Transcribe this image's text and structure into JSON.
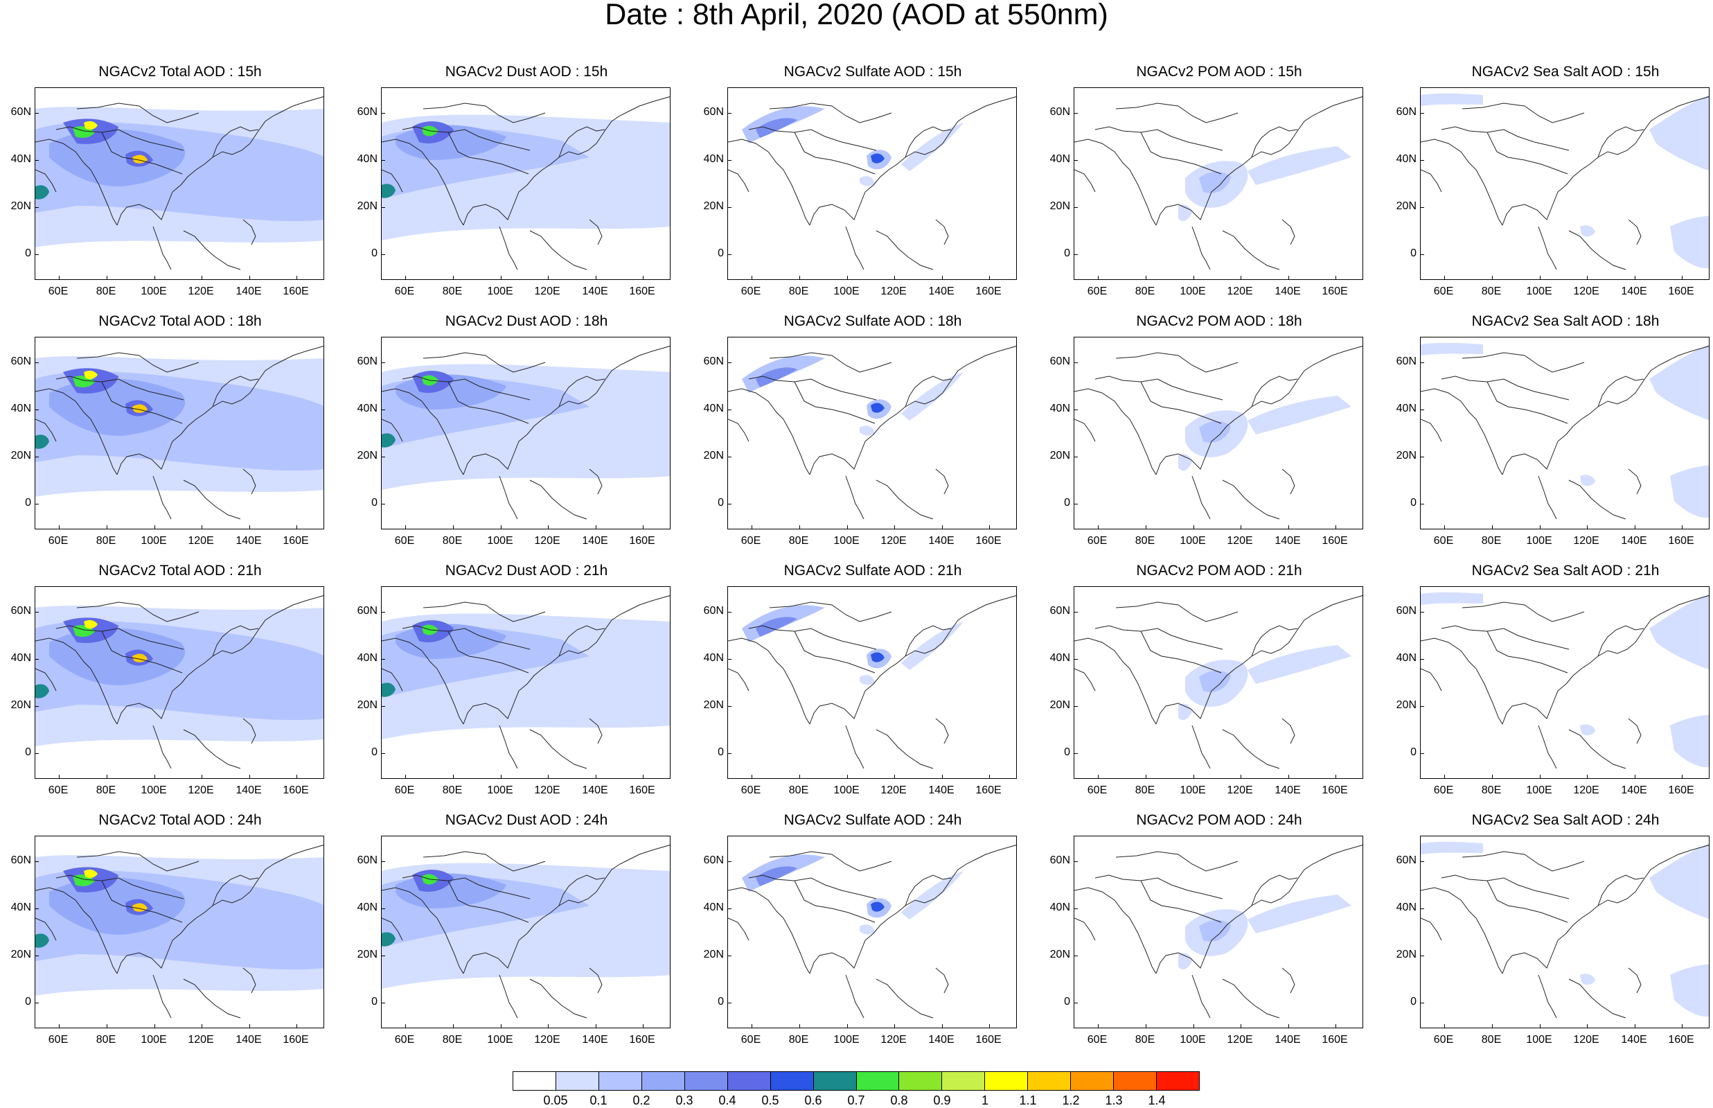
{
  "title": "Date : 8th April, 2020 (AOD at 550nm)",
  "y_ticks": [
    "60N",
    "40N",
    "20N",
    "0"
  ],
  "x_ticks": [
    "60E",
    "80E",
    "100E",
    "120E",
    "140E",
    "160E"
  ],
  "panels": [
    {
      "title": "NGACv2 Total AOD : 15h",
      "product": "total"
    },
    {
      "title": "NGACv2 Dust AOD : 15h",
      "product": "dust"
    },
    {
      "title": "NGACv2 Sulfate AOD : 15h",
      "product": "sulfate"
    },
    {
      "title": "NGACv2 POM AOD : 15h",
      "product": "pom"
    },
    {
      "title": "NGACv2 Sea Salt AOD : 15h",
      "product": "seasalt"
    },
    {
      "title": "NGACv2 Total AOD : 18h",
      "product": "total"
    },
    {
      "title": "NGACv2 Dust AOD : 18h",
      "product": "dust"
    },
    {
      "title": "NGACv2 Sulfate AOD : 18h",
      "product": "sulfate"
    },
    {
      "title": "NGACv2 POM AOD : 18h",
      "product": "pom"
    },
    {
      "title": "NGACv2 Sea Salt AOD : 18h",
      "product": "seasalt"
    },
    {
      "title": "NGACv2 Total AOD : 21h",
      "product": "total"
    },
    {
      "title": "NGACv2 Dust AOD : 21h",
      "product": "dust"
    },
    {
      "title": "NGACv2 Sulfate AOD : 21h",
      "product": "sulfate"
    },
    {
      "title": "NGACv2 POM AOD : 21h",
      "product": "pom"
    },
    {
      "title": "NGACv2 Sea Salt AOD : 21h",
      "product": "seasalt"
    },
    {
      "title": "NGACv2 Total AOD : 24h",
      "product": "total"
    },
    {
      "title": "NGACv2 Dust AOD : 24h",
      "product": "dust"
    },
    {
      "title": "NGACv2 Sulfate AOD : 24h",
      "product": "sulfate"
    },
    {
      "title": "NGACv2 POM AOD : 24h",
      "product": "pom"
    },
    {
      "title": "NGACv2 Sea Salt  AOD : 24h",
      "product": "seasalt"
    }
  ],
  "colorbar": {
    "labels": [
      "0.05",
      "0.1",
      "0.2",
      "0.3",
      "0.4",
      "0.5",
      "0.6",
      "0.7",
      "0.8",
      "0.9",
      "1",
      "1.1",
      "1.2",
      "1.3",
      "1.4"
    ],
    "colors": [
      "#ffffff",
      "#d4deff",
      "#b4c4ff",
      "#94aaf9",
      "#7a8ef0",
      "#5f6ae6",
      "#2a55e6",
      "#1a8a8a",
      "#3ee63e",
      "#8ae62a",
      "#c8f04a",
      "#ffff00",
      "#ffcc00",
      "#ff9900",
      "#ff6600",
      "#ff1a00"
    ]
  }
}
